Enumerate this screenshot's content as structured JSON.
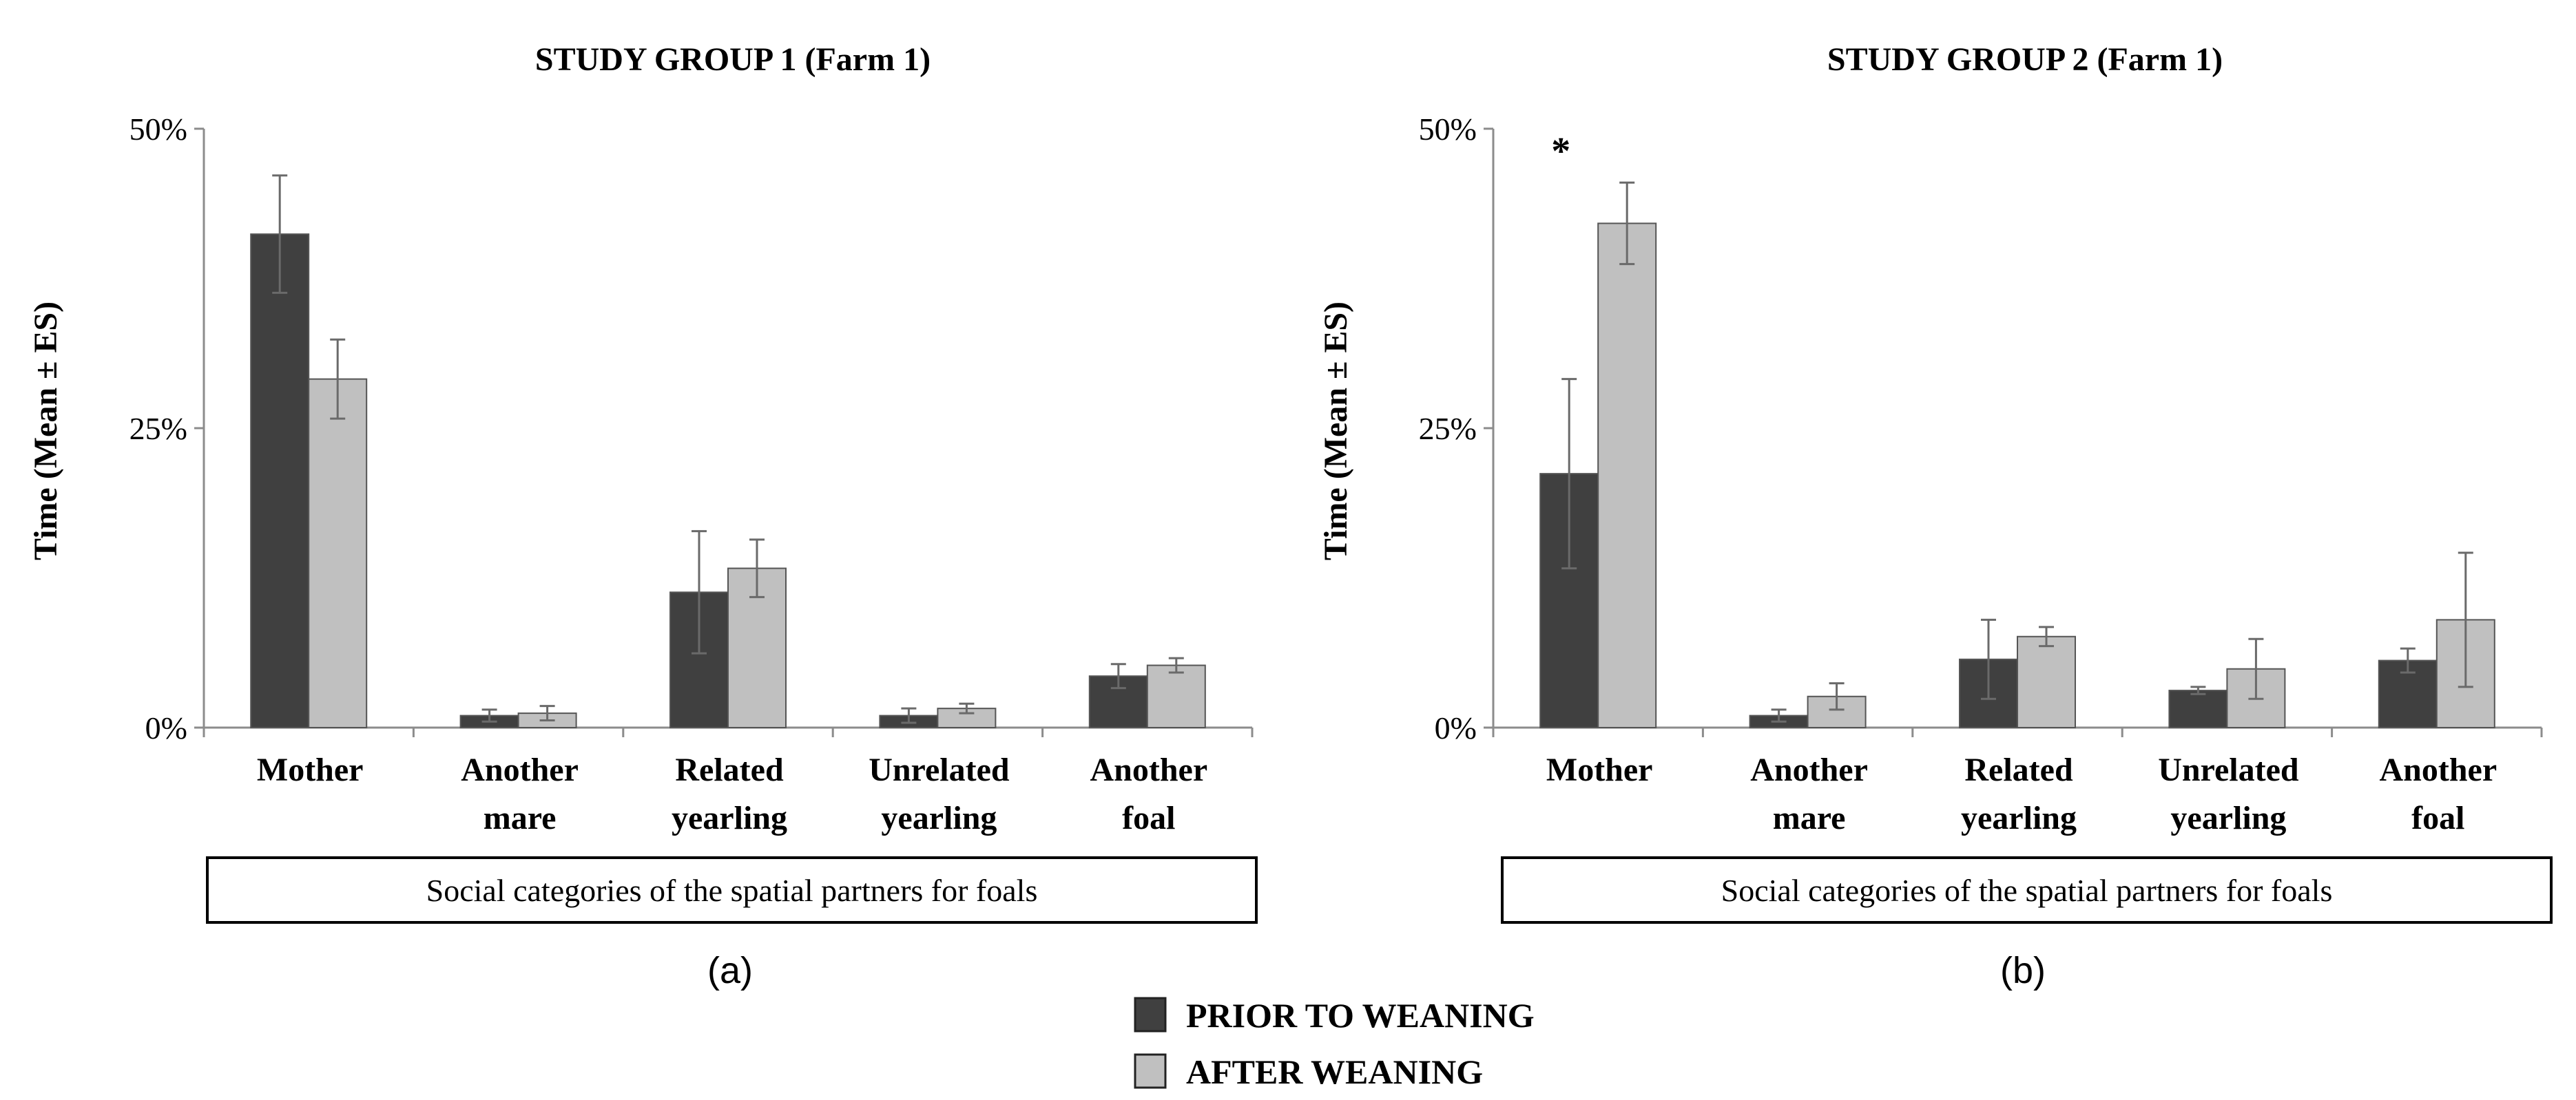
{
  "colors": {
    "prior": "#404040",
    "after": "#c0c0c0",
    "axis": "#8c8c8c",
    "text": "#000000"
  },
  "legend": {
    "items": [
      {
        "key": "prior",
        "label": "PRIOR TO WEANING"
      },
      {
        "key": "after",
        "label": "AFTER WEANING"
      }
    ]
  },
  "chart_data": [
    {
      "type": "bar",
      "panel": "(a)",
      "title": "STUDY GROUP 1 (Farm 1)",
      "ylabel": "Time (Mean ± ES)",
      "xlabel": "Social categories of the spatial partners for foals",
      "ylim": [
        0,
        50
      ],
      "yticks": [
        0,
        25,
        50
      ],
      "yticklabels": [
        "0%",
        "25%",
        "50%"
      ],
      "categories": [
        [
          "Mother"
        ],
        [
          "Another",
          "mare"
        ],
        [
          "Related",
          "yearling"
        ],
        [
          "Unrelated",
          "yearling"
        ],
        [
          "Another",
          "foal"
        ]
      ],
      "series": [
        {
          "name": "PRIOR TO WEANING",
          "key": "prior",
          "values": [
            41.2,
            1.0,
            11.3,
            1.0,
            4.3
          ],
          "errors": [
            4.9,
            0.5,
            5.1,
            0.6,
            1.0
          ]
        },
        {
          "name": "AFTER WEANING",
          "key": "after",
          "values": [
            29.1,
            1.2,
            13.3,
            1.6,
            5.2
          ],
          "errors": [
            3.3,
            0.6,
            2.4,
            0.4,
            0.6
          ]
        }
      ],
      "annotations": []
    },
    {
      "type": "bar",
      "panel": "(b)",
      "title": "STUDY GROUP 2 (Farm 1)",
      "ylabel": "Time (Mean ± ES)",
      "xlabel": "Social categories of the spatial partners for foals",
      "ylim": [
        0,
        50
      ],
      "yticks": [
        0,
        25,
        50
      ],
      "yticklabels": [
        "0%",
        "25%",
        "50%"
      ],
      "categories": [
        [
          "Mother"
        ],
        [
          "Another",
          "mare"
        ],
        [
          "Related",
          "yearling"
        ],
        [
          "Unrelated",
          "yearling"
        ],
        [
          "Another",
          "foal"
        ]
      ],
      "series": [
        {
          "name": "PRIOR TO WEANING",
          "key": "prior",
          "values": [
            21.2,
            1.0,
            5.7,
            3.1,
            5.6
          ],
          "errors": [
            7.9,
            0.5,
            3.3,
            0.3,
            1.0
          ]
        },
        {
          "name": "AFTER WEANING",
          "key": "after",
          "values": [
            42.1,
            2.6,
            7.6,
            4.9,
            9.0
          ],
          "errors": [
            3.4,
            1.1,
            0.8,
            2.5,
            5.6
          ]
        }
      ],
      "annotations": [
        {
          "text": "*",
          "category_index": 0
        }
      ]
    }
  ]
}
